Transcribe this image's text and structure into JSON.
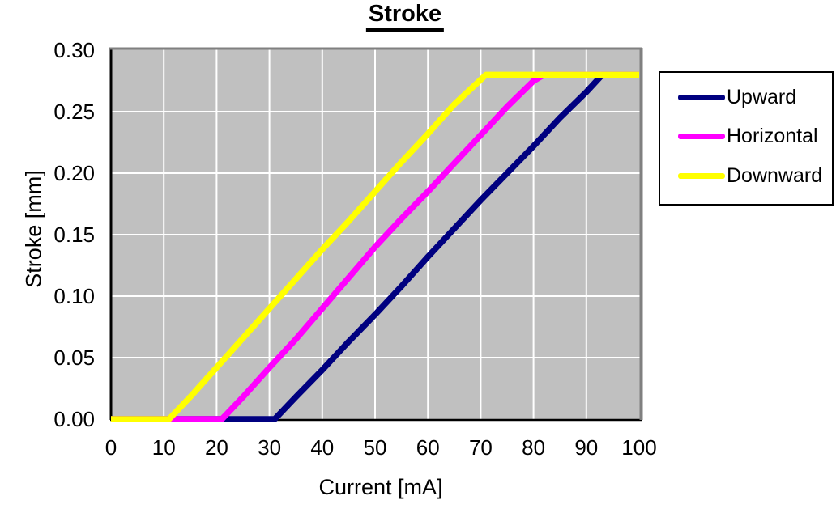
{
  "page": {
    "background": "#FFFFFF"
  },
  "chart_data": {
    "type": "line",
    "title": "Stroke",
    "xlabel": "Current [mA]",
    "ylabel": "Stroke [mm]",
    "xlim": [
      0,
      100
    ],
    "ylim": [
      0,
      0.3
    ],
    "x_ticks": [
      0,
      10,
      20,
      30,
      40,
      50,
      60,
      70,
      80,
      90,
      100
    ],
    "x_tick_labels": [
      "0",
      "10",
      "20",
      "30",
      "40",
      "50",
      "60",
      "70",
      "80",
      "90",
      "100"
    ],
    "y_ticks": [
      0,
      0.05,
      0.1,
      0.15,
      0.2,
      0.25,
      0.3
    ],
    "y_tick_labels": [
      "0.00",
      "0.05",
      "0.10",
      "0.15",
      "0.20",
      "0.25",
      "0.30"
    ],
    "grid": true,
    "plot_background": "#C0C0C0",
    "gridline_color": "#FFFFFF",
    "frame_color": "#808080",
    "axis_color": "#000000",
    "legend_position": "right",
    "series": [
      {
        "name": "Upward",
        "color": "#000080",
        "points": [
          [
            0,
            0
          ],
          [
            10,
            0
          ],
          [
            20,
            0
          ],
          [
            30,
            0
          ],
          [
            31,
            0
          ],
          [
            35,
            0.018
          ],
          [
            40,
            0.04
          ],
          [
            45,
            0.063
          ],
          [
            50,
            0.085
          ],
          [
            55,
            0.108
          ],
          [
            60,
            0.132
          ],
          [
            65,
            0.155
          ],
          [
            70,
            0.178
          ],
          [
            75,
            0.2
          ],
          [
            80,
            0.222
          ],
          [
            85,
            0.245
          ],
          [
            90,
            0.266
          ],
          [
            93,
            0.28
          ],
          [
            100,
            0.28
          ]
        ]
      },
      {
        "name": "Horizontal",
        "color": "#FF00FF",
        "points": [
          [
            0,
            0
          ],
          [
            10,
            0
          ],
          [
            20,
            0
          ],
          [
            21,
            0
          ],
          [
            25,
            0.018
          ],
          [
            30,
            0.042
          ],
          [
            35,
            0.065
          ],
          [
            40,
            0.09
          ],
          [
            45,
            0.115
          ],
          [
            50,
            0.14
          ],
          [
            55,
            0.163
          ],
          [
            60,
            0.185
          ],
          [
            65,
            0.208
          ],
          [
            70,
            0.231
          ],
          [
            75,
            0.254
          ],
          [
            80,
            0.275
          ],
          [
            82,
            0.28
          ],
          [
            90,
            0.28
          ],
          [
            100,
            0.28
          ]
        ]
      },
      {
        "name": "Downward",
        "color": "#FFFF00",
        "points": [
          [
            0,
            0
          ],
          [
            5,
            0
          ],
          [
            10,
            0
          ],
          [
            11,
            0
          ],
          [
            15,
            0.018
          ],
          [
            20,
            0.042
          ],
          [
            25,
            0.066
          ],
          [
            30,
            0.09
          ],
          [
            35,
            0.114
          ],
          [
            40,
            0.138
          ],
          [
            45,
            0.161
          ],
          [
            50,
            0.185
          ],
          [
            55,
            0.209
          ],
          [
            60,
            0.232
          ],
          [
            65,
            0.256
          ],
          [
            70,
            0.276
          ],
          [
            71,
            0.28
          ],
          [
            80,
            0.28
          ],
          [
            90,
            0.28
          ],
          [
            100,
            0.28
          ]
        ]
      }
    ]
  }
}
